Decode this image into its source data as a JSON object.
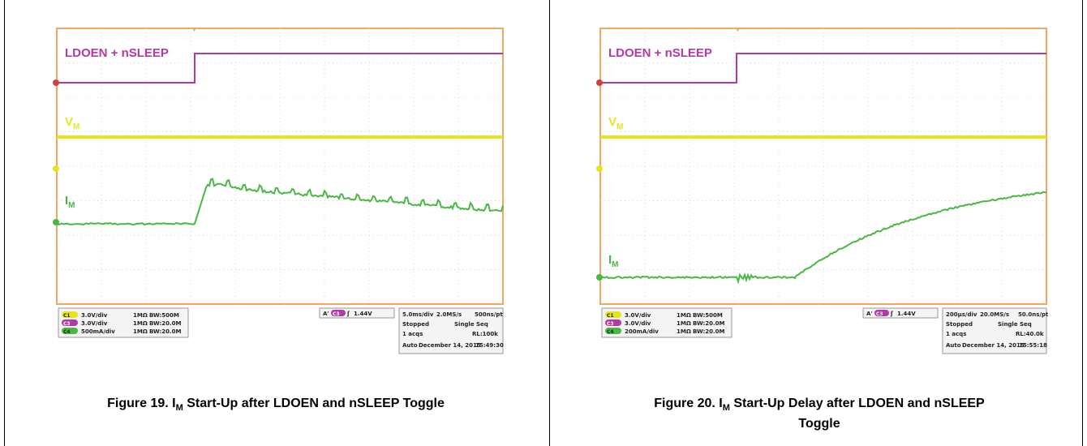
{
  "figures": [
    {
      "caption_prefix": "Figure 19. I",
      "caption_sub": "M",
      "caption_suffix": " Start-Up after LDOEN and nSLEEP Toggle",
      "chart_data": {
        "type": "line",
        "title": "",
        "traces": [
          {
            "name": "LDOEN + nSLEEP",
            "color": "#b23aa4"
          },
          {
            "name": "V",
            "sub": "M",
            "color": "#e8e419"
          },
          {
            "name": "I",
            "sub": "M",
            "color": "#49b843"
          }
        ],
        "channels": [
          {
            "badge": "C1",
            "scale": "3.0V/div",
            "imp": "1MΩ",
            "bw": "BW:500M"
          },
          {
            "badge": "C3",
            "scale": "3.0V/div",
            "imp": "1MΩ",
            "bw": "BW:20.0M"
          },
          {
            "badge": "C4",
            "scale": "500mA/div",
            "imp": "1MΩ",
            "bw": "BW:20.0M"
          }
        ],
        "trigger": {
          "label": "A'",
          "badge": "C3",
          "level": "1.44V"
        },
        "timebase": {
          "div": "5.0ms/div",
          "rate": "2.0MS/s",
          "pt": "500ns/pt",
          "state": "Stopped",
          "mode": "Single Seq",
          "acqs": "1 acqs",
          "rl": "RL:100k",
          "auto": "Auto",
          "date": "December 14, 2015",
          "time": "15:49:30"
        }
      }
    },
    {
      "caption_prefix": "Figure 20. I",
      "caption_sub": "M",
      "caption_suffix": " Start-Up Delay after LDOEN and nSLEEP",
      "caption_line2": "Toggle",
      "chart_data": {
        "type": "line",
        "title": "",
        "traces": [
          {
            "name": "LDOEN + nSLEEP",
            "color": "#b23aa4"
          },
          {
            "name": "V",
            "sub": "M",
            "color": "#e8e419"
          },
          {
            "name": "I",
            "sub": "M",
            "color": "#49b843"
          }
        ],
        "channels": [
          {
            "badge": "C1",
            "scale": "3.0V/div",
            "imp": "1MΩ",
            "bw": "BW:500M"
          },
          {
            "badge": "C3",
            "scale": "3.0V/div",
            "imp": "1MΩ",
            "bw": "BW:20.0M"
          },
          {
            "badge": "C4",
            "scale": "200mA/div",
            "imp": "1MΩ",
            "bw": "BW:20.0M"
          }
        ],
        "trigger": {
          "label": "A'",
          "badge": "C3",
          "level": "1.44V"
        },
        "timebase": {
          "div": "200µs/div",
          "rate": "20.0MS/s",
          "pt": "50.0ns/pt",
          "state": "Stopped",
          "mode": "Single Seq",
          "acqs": "1 acqs",
          "rl": "RL:40.0k",
          "auto": "Auto",
          "date": "December 14, 2015",
          "time": "15:55:18"
        }
      }
    }
  ]
}
